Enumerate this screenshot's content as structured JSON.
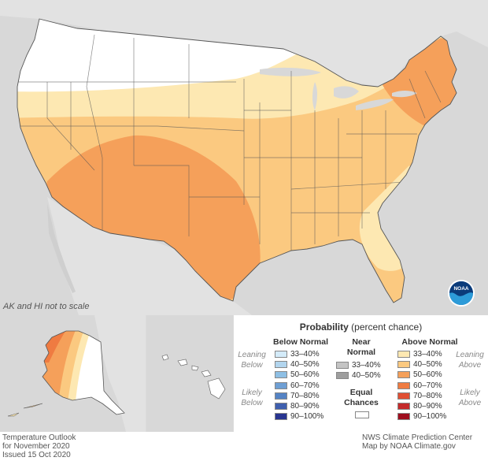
{
  "map": {
    "scale_note": "AK and HI not to scale",
    "colors": {
      "water": "#dcdcdc",
      "land_outside": "#dcdcdc",
      "equal_chances": "#ffffff",
      "above_33_40": "#fde8b2",
      "above_40_50": "#fbc980",
      "above_50_60": "#f5a05a"
    },
    "logo_icon": "noaa-logo-icon"
  },
  "legend": {
    "title_bold": "Probability",
    "title_rest": "(percent chance)",
    "below": {
      "header": "Below Normal",
      "leaning_label": [
        "Leaning",
        "Below"
      ],
      "likely_label": [
        "Likely",
        "Below"
      ],
      "items": [
        {
          "label": "33–40%",
          "color": "#d4ebf9"
        },
        {
          "label": "40–50%",
          "color": "#b2d5ee"
        },
        {
          "label": "50–60%",
          "color": "#8ebfe4"
        },
        {
          "label": "60–70%",
          "color": "#6e9fd4"
        },
        {
          "label": "70–80%",
          "color": "#5583c4"
        },
        {
          "label": "80–90%",
          "color": "#3f5fae"
        },
        {
          "label": "90–100%",
          "color": "#283590"
        }
      ]
    },
    "near": {
      "header": [
        "Near",
        "Normal"
      ],
      "items": [
        {
          "label": "33–40%",
          "color": "#c4c4c4"
        },
        {
          "label": "40–50%",
          "color": "#9e9e9e"
        }
      ]
    },
    "equal": {
      "label": [
        "Equal",
        "Chances"
      ],
      "color": "#ffffff"
    },
    "above": {
      "header": "Above Normal",
      "leaning_label": [
        "Leaning",
        "Above"
      ],
      "likely_label": [
        "Likely",
        "Above"
      ],
      "items": [
        {
          "label": "33–40%",
          "color": "#fde8b2"
        },
        {
          "label": "40–50%",
          "color": "#fbc980"
        },
        {
          "label": "50–60%",
          "color": "#f5a05a"
        },
        {
          "label": "60–70%",
          "color": "#ef7b41"
        },
        {
          "label": "70–80%",
          "color": "#e04f33"
        },
        {
          "label": "80–90%",
          "color": "#c42a2a"
        },
        {
          "label": "90–100%",
          "color": "#9e0e1e"
        }
      ]
    }
  },
  "footer": {
    "left": [
      "Temperature Outlook",
      "for November 2020",
      "Issued 15 Oct 2020"
    ],
    "right": [
      "NWS Climate Prediction Center",
      "Map by NOAA Climate.gov"
    ]
  }
}
